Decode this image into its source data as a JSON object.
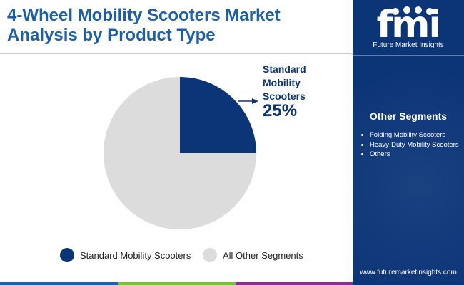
{
  "title": "4-Wheel Mobility Scooters Market Analysis by Product Type",
  "brand": {
    "logo_text": "fmi",
    "name": "Future Market Insights",
    "website": "www.futuremarketinsights.com"
  },
  "other_segments": {
    "heading": "Other Segments",
    "items": [
      "Folding Mobility Scooters",
      "Heavy-Duty Mobility Scooters",
      "Others"
    ]
  },
  "chart_data": {
    "type": "pie",
    "slices": [
      {
        "label": "Standard Mobility Scooters",
        "value": 25,
        "color": "#0c3578"
      },
      {
        "label": "All Other Segments",
        "value": 75,
        "color": "#dcdcdc"
      }
    ],
    "callout": {
      "label": "Standard Mobility Scooters",
      "value": "25%"
    },
    "legend": [
      "Standard Mobility Scooters",
      "All Other Segments"
    ],
    "legend_position": "bottom"
  },
  "colors": {
    "title": "#1a5fa8",
    "panel": "#0c3578",
    "accent_bar": [
      "#1f5fae",
      "#7bbf3a",
      "#8b2f8f",
      "#0c3578"
    ]
  }
}
